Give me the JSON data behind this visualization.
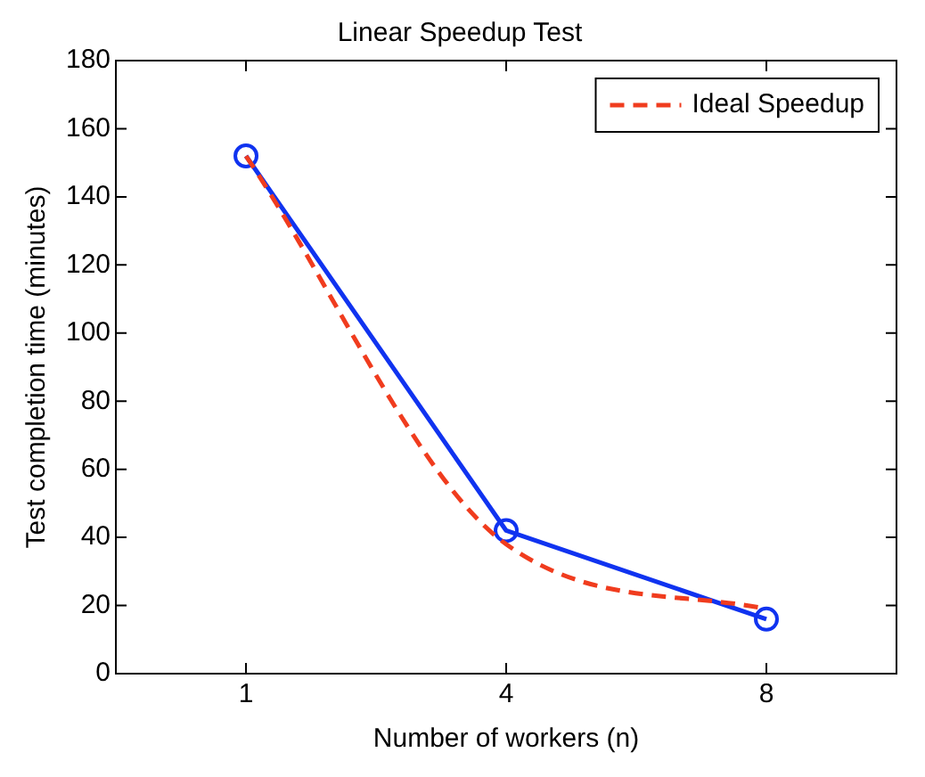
{
  "chart_data": {
    "type": "line",
    "title": "Linear Speedup Test",
    "xlabel": "Number of workers (n)",
    "ylabel": "Test completion time (minutes)",
    "categories": [
      "1",
      "4",
      "8"
    ],
    "ylim": [
      0,
      180
    ],
    "yticks": [
      0,
      20,
      40,
      60,
      80,
      100,
      120,
      140,
      160,
      180
    ],
    "grid": false,
    "legend": "top right",
    "series": [
      {
        "color": "#1033f0",
        "values": [
          152,
          42,
          16
        ],
        "marker": "circle",
        "line_style": "solid"
      },
      {
        "name": "Ideal Speedup",
        "color": "#f03c1e",
        "values": [
          152,
          38,
          19
        ],
        "marker": "none",
        "line_style": "dashed"
      }
    ]
  }
}
